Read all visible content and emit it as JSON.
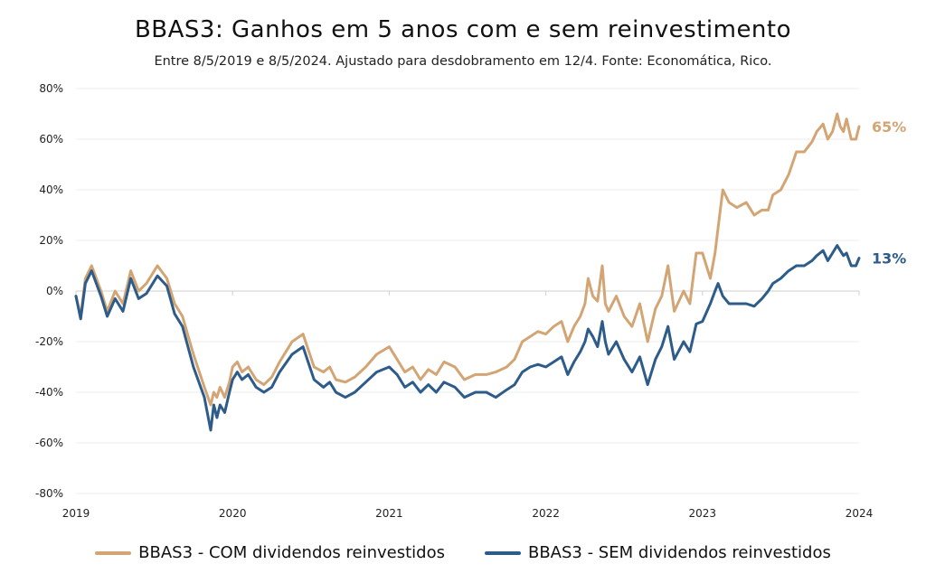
{
  "chart_data": {
    "type": "line",
    "title": "BBAS3: Ganhos em 5 anos com e sem reinvestimento",
    "subtitle": "Entre 8/5/2019 e 8/5/2024. Ajustado para desdobramento em 12/4. Fonte: Economática, Rico.",
    "xlabel": "",
    "ylabel": "",
    "x_ticks": [
      "2019",
      "2020",
      "2021",
      "2022",
      "2023",
      "2024"
    ],
    "x_range": [
      2019,
      2024
    ],
    "ylim": [
      -80,
      80
    ],
    "y_ticks": [
      80,
      60,
      40,
      20,
      0,
      -20,
      -40,
      -60,
      -80
    ],
    "y_tick_labels": [
      "80%",
      "60%",
      "40%",
      "20%",
      "0%",
      "-20%",
      "-40%",
      "-60%",
      "-80%"
    ],
    "grid": true,
    "legend_position": "bottom",
    "series": [
      {
        "name": "BBAS3 - COM dividendos reinvestidos",
        "color": "#d4a574",
        "end_label": "65%",
        "x": [
          2019.0,
          2019.03,
          2019.06,
          2019.1,
          2019.16,
          2019.2,
          2019.25,
          2019.3,
          2019.35,
          2019.4,
          2019.45,
          2019.52,
          2019.58,
          2019.63,
          2019.68,
          2019.75,
          2019.82,
          2019.86,
          2019.88,
          2019.9,
          2019.92,
          2019.95,
          2019.98,
          2020.0,
          2020.03,
          2020.06,
          2020.1,
          2020.15,
          2020.2,
          2020.25,
          2020.3,
          2020.38,
          2020.45,
          2020.52,
          2020.58,
          2020.62,
          2020.66,
          2020.72,
          2020.78,
          2020.85,
          2020.92,
          2021.0,
          2021.05,
          2021.1,
          2021.15,
          2021.2,
          2021.25,
          2021.3,
          2021.35,
          2021.42,
          2021.48,
          2021.55,
          2021.62,
          2021.68,
          2021.75,
          2021.8,
          2021.85,
          2021.9,
          2021.95,
          2022.0,
          2022.05,
          2022.1,
          2022.14,
          2022.18,
          2022.22,
          2022.25,
          2022.27,
          2022.3,
          2022.33,
          2022.36,
          2022.38,
          2022.4,
          2022.45,
          2022.5,
          2022.55,
          2022.6,
          2022.65,
          2022.7,
          2022.74,
          2022.78,
          2022.82,
          2022.88,
          2022.92,
          2022.96,
          2023.0,
          2023.05,
          2023.08,
          2023.1,
          2023.13,
          2023.17,
          2023.22,
          2023.28,
          2023.33,
          2023.38,
          2023.42,
          2023.45,
          2023.5,
          2023.55,
          2023.6,
          2023.65,
          2023.7,
          2023.73,
          2023.77,
          2023.8,
          2023.83,
          2023.86,
          2023.88,
          2023.9,
          2023.92,
          2023.95,
          2023.98,
          2024.0
        ],
        "y": [
          -2,
          -10,
          5,
          10,
          0,
          -8,
          0,
          -5,
          8,
          0,
          3,
          10,
          5,
          -5,
          -10,
          -25,
          -38,
          -45,
          -40,
          -42,
          -38,
          -42,
          -36,
          -30,
          -28,
          -32,
          -30,
          -35,
          -37,
          -34,
          -28,
          -20,
          -17,
          -30,
          -32,
          -30,
          -35,
          -36,
          -34,
          -30,
          -25,
          -22,
          -27,
          -32,
          -30,
          -35,
          -31,
          -33,
          -28,
          -30,
          -35,
          -33,
          -33,
          -32,
          -30,
          -27,
          -20,
          -18,
          -16,
          -17,
          -14,
          -12,
          -20,
          -14,
          -10,
          -5,
          5,
          -2,
          -4,
          10,
          -5,
          -8,
          -2,
          -10,
          -14,
          -5,
          -20,
          -7,
          -2,
          10,
          -8,
          0,
          -5,
          15,
          15,
          5,
          15,
          25,
          40,
          35,
          33,
          35,
          30,
          32,
          32,
          38,
          40,
          46,
          55,
          55,
          59,
          63,
          66,
          60,
          63,
          70,
          65,
          63,
          68,
          60,
          60,
          65
        ]
      },
      {
        "name": "BBAS3 - SEM dividendos reinvestidos",
        "color": "#2e5c8a",
        "end_label": "13%",
        "x": [
          2019.0,
          2019.03,
          2019.06,
          2019.1,
          2019.16,
          2019.2,
          2019.25,
          2019.3,
          2019.35,
          2019.4,
          2019.45,
          2019.52,
          2019.58,
          2019.63,
          2019.68,
          2019.75,
          2019.82,
          2019.86,
          2019.88,
          2019.9,
          2019.92,
          2019.95,
          2019.98,
          2020.0,
          2020.03,
          2020.06,
          2020.1,
          2020.15,
          2020.2,
          2020.25,
          2020.3,
          2020.38,
          2020.45,
          2020.52,
          2020.58,
          2020.62,
          2020.66,
          2020.72,
          2020.78,
          2020.85,
          2020.92,
          2021.0,
          2021.05,
          2021.1,
          2021.15,
          2021.2,
          2021.25,
          2021.3,
          2021.35,
          2021.42,
          2021.48,
          2021.55,
          2021.62,
          2021.68,
          2021.75,
          2021.8,
          2021.85,
          2021.9,
          2021.95,
          2022.0,
          2022.05,
          2022.1,
          2022.14,
          2022.18,
          2022.22,
          2022.25,
          2022.27,
          2022.3,
          2022.33,
          2022.36,
          2022.38,
          2022.4,
          2022.45,
          2022.5,
          2022.55,
          2022.6,
          2022.65,
          2022.7,
          2022.74,
          2022.78,
          2022.82,
          2022.88,
          2022.92,
          2022.96,
          2023.0,
          2023.05,
          2023.08,
          2023.1,
          2023.13,
          2023.17,
          2023.22,
          2023.28,
          2023.33,
          2023.38,
          2023.42,
          2023.45,
          2023.5,
          2023.55,
          2023.6,
          2023.65,
          2023.7,
          2023.73,
          2023.77,
          2023.8,
          2023.83,
          2023.86,
          2023.88,
          2023.9,
          2023.92,
          2023.95,
          2023.98,
          2024.0
        ],
        "y": [
          -2,
          -11,
          3,
          8,
          -2,
          -10,
          -3,
          -8,
          5,
          -3,
          -1,
          6,
          2,
          -9,
          -14,
          -30,
          -42,
          -55,
          -45,
          -50,
          -45,
          -48,
          -40,
          -35,
          -32,
          -35,
          -33,
          -38,
          -40,
          -38,
          -32,
          -25,
          -22,
          -35,
          -38,
          -36,
          -40,
          -42,
          -40,
          -36,
          -32,
          -30,
          -33,
          -38,
          -36,
          -40,
          -37,
          -40,
          -36,
          -38,
          -42,
          -40,
          -40,
          -42,
          -39,
          -37,
          -32,
          -30,
          -29,
          -30,
          -28,
          -26,
          -33,
          -28,
          -24,
          -20,
          -15,
          -18,
          -22,
          -12,
          -20,
          -25,
          -20,
          -27,
          -32,
          -26,
          -37,
          -27,
          -22,
          -14,
          -27,
          -20,
          -24,
          -13,
          -12,
          -5,
          0,
          3,
          -2,
          -5,
          -5,
          -5,
          -6,
          -3,
          0,
          3,
          5,
          8,
          10,
          10,
          12,
          14,
          16,
          12,
          15,
          18,
          16,
          14,
          15,
          10,
          10,
          13
        ]
      }
    ]
  }
}
